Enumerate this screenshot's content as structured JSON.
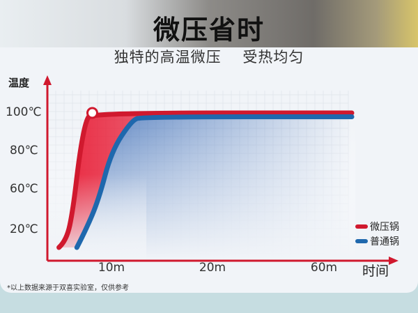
{
  "header": {
    "title": "微压省时",
    "subtitle": "独特的高温微压    受热均匀"
  },
  "chart_data": {
    "type": "line",
    "title": "微压省时",
    "subtitle": "独特的高温微压    受热均匀",
    "ylabel": "温度",
    "xlabel": "时间",
    "y_ticks": [
      {
        "value": 100,
        "label": "100℃"
      },
      {
        "value": 80,
        "label": "80℃"
      },
      {
        "value": 60,
        "label": "60℃"
      },
      {
        "value": 20,
        "label": "20℃"
      }
    ],
    "x_ticks": [
      {
        "value": 10,
        "label": "10m"
      },
      {
        "value": 20,
        "label": "20m"
      },
      {
        "value": 60,
        "label": "60m"
      }
    ],
    "grid": true,
    "legend": "right",
    "series": [
      {
        "name": "微压锅",
        "color": "#d0192e",
        "points": [
          [
            1.8,
            10
          ],
          [
            3,
            14
          ],
          [
            4,
            40
          ],
          [
            5,
            78
          ],
          [
            6,
            96
          ],
          [
            6.9,
            100
          ],
          [
            70,
            100
          ]
        ]
      },
      {
        "name": "普通锅",
        "color": "#1f68ad",
        "points": [
          [
            4.6,
            10
          ],
          [
            6,
            20
          ],
          [
            8,
            50
          ],
          [
            10,
            80
          ],
          [
            12,
            96
          ],
          [
            13,
            98
          ],
          [
            70,
            98
          ]
        ]
      }
    ],
    "note": "*以上数据来源于双喜实验室，仅供参考"
  }
}
